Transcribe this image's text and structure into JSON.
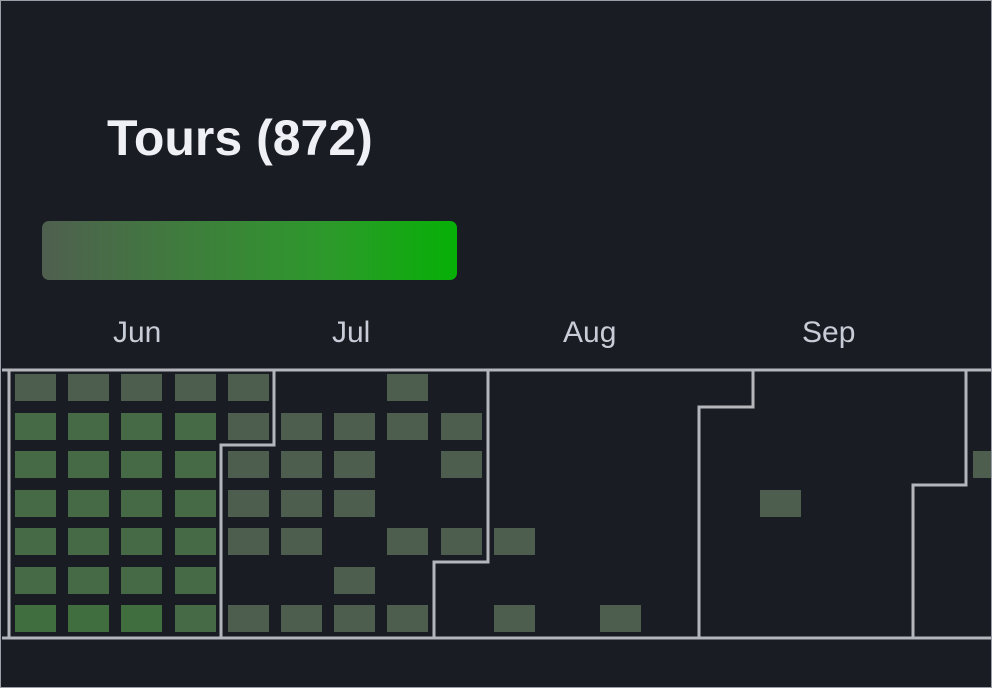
{
  "title": "Tours (872)",
  "legend": {
    "from_color": "#4f5f4f",
    "to_color": "#06b006"
  },
  "months": [
    "Jun",
    "Jul",
    "Aug",
    "Sep"
  ],
  "colors": {
    "background": "#191c23",
    "level_high": "#416e3f",
    "level_mid": "#456a45",
    "level_low": "#4e5e4e",
    "month_separator": "#b4b6bc"
  },
  "chart_data": {
    "type": "heatmap",
    "title": "Tours (872)",
    "x_labels": [
      "Jun",
      "Jul",
      "Aug",
      "Sep"
    ],
    "rows": 7,
    "columns": 19,
    "levels": [
      [
        1,
        1,
        1,
        1,
        1,
        0,
        0,
        1,
        0,
        0,
        0,
        0,
        0,
        0,
        0,
        0,
        0,
        0,
        0
      ],
      [
        2,
        2,
        2,
        2,
        1,
        1,
        1,
        1,
        1,
        0,
        0,
        0,
        0,
        0,
        0,
        0,
        0,
        0,
        0
      ],
      [
        2,
        2,
        2,
        2,
        1,
        1,
        1,
        0,
        1,
        0,
        0,
        0,
        0,
        0,
        0,
        0,
        0,
        0,
        1
      ],
      [
        2,
        2,
        2,
        2,
        1,
        1,
        1,
        0,
        0,
        0,
        0,
        0,
        0,
        0,
        1,
        0,
        0,
        0,
        0
      ],
      [
        2,
        2,
        2,
        2,
        1,
        1,
        0,
        1,
        1,
        1,
        0,
        0,
        0,
        0,
        0,
        0,
        0,
        0,
        0
      ],
      [
        2,
        2,
        2,
        2,
        0,
        0,
        1,
        0,
        0,
        0,
        0,
        0,
        0,
        0,
        0,
        0,
        0,
        0,
        0
      ],
      [
        3,
        3,
        3,
        2,
        1,
        1,
        1,
        1,
        0,
        1,
        0,
        1,
        0,
        0,
        0,
        0,
        0,
        0,
        0
      ]
    ],
    "legend": "gradient from few to many tours"
  }
}
